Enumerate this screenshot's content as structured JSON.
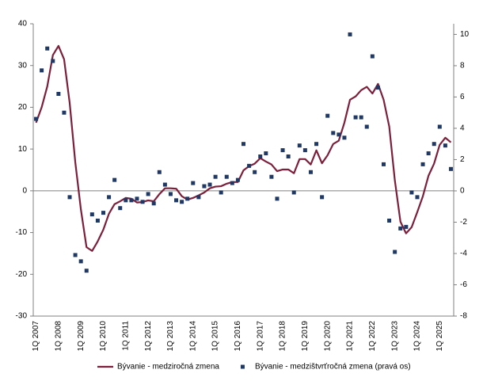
{
  "chart_data": {
    "type": "line",
    "categories": [
      "1Q 2007",
      null,
      null,
      null,
      "1Q 2008",
      null,
      null,
      null,
      "1Q 2009",
      null,
      null,
      null,
      "1Q 2010",
      null,
      null,
      null,
      "1Q 2011",
      null,
      null,
      null,
      "1Q 2012",
      null,
      null,
      null,
      "1Q 2013",
      null,
      null,
      null,
      "1Q 2014",
      null,
      null,
      null,
      "1Q 2015",
      null,
      null,
      null,
      "1Q 2016",
      null,
      null,
      null,
      "1Q 2017",
      null,
      null,
      null,
      "1Q 2018",
      null,
      null,
      null,
      "1Q 2019",
      null,
      null,
      null,
      "1Q 2020",
      null,
      null,
      null,
      "1Q 2021",
      null,
      null,
      null,
      "1Q 2022",
      null,
      null,
      null,
      "1Q 2023",
      null,
      null,
      null,
      "1Q 2024",
      null,
      null,
      null,
      "1Q 2025",
      null,
      null
    ],
    "series": [
      {
        "name": "Bývanie - medziročná zmena",
        "color": "#7b1f3a",
        "type": "line",
        "values": [
          16.3,
          20,
          25,
          32.5,
          34.7,
          31.5,
          21,
          6.8,
          -4.5,
          -13.5,
          -14.4,
          -12.1,
          -9.3,
          -5.5,
          -3.2,
          -2.5,
          -1.7,
          -1.9,
          -2.8,
          -2.7,
          -2.3,
          -2.5,
          -0.8,
          0.6,
          0.6,
          0.5,
          -1.3,
          -2.1,
          -1.7,
          -1.1,
          -0.4,
          0.6,
          1,
          1.1,
          1.7,
          2.1,
          2.1,
          4.9,
          5.9,
          6.5,
          7.8,
          7,
          6.3,
          4.7,
          5.1,
          5.1,
          4.2,
          7.6,
          7.6,
          6.3,
          9.7,
          6.6,
          8.5,
          11.2,
          12,
          16.3,
          21.8,
          22.6,
          24.1,
          24.9,
          23.3,
          25.6,
          21.8,
          15.4,
          2.5,
          -7.4,
          -10.2,
          -8.7,
          -5.1,
          -1.3,
          3.6,
          6.5,
          11,
          12.7,
          11.6
        ]
      },
      {
        "name": "Bývanie - medzištvrťročná zmena (pravá os)",
        "color": "#1f3864",
        "type": "scatter",
        "axis": "y2",
        "values": [
          4.6,
          7.7,
          9.1,
          8.3,
          6.2,
          5.0,
          -0.4,
          -4.1,
          -4.5,
          -5.1,
          -1.5,
          -1.9,
          -1.4,
          -0.4,
          0.7,
          -1.1,
          -0.6,
          -0.6,
          -0.5,
          -0.7,
          -0.2,
          -0.8,
          1.2,
          0.4,
          -0.2,
          -0.6,
          -0.7,
          -0.5,
          0.5,
          -0.4,
          0.3,
          0.4,
          0.9,
          -0.1,
          0.9,
          0.5,
          0.7,
          3.0,
          1.6,
          1.2,
          2.2,
          2.4,
          0.9,
          -0.5,
          2.6,
          2.2,
          -0.1,
          2.9,
          2.6,
          1.2,
          3.0,
          -0.4,
          4.8,
          3.7,
          3.6,
          3.4,
          10.0,
          4.7,
          4.7,
          4.1,
          8.6,
          6.6,
          1.7,
          -1.9,
          -3.9,
          -2.4,
          -2.3,
          -0.1,
          -0.4,
          1.7,
          2.4,
          3.0,
          4.1,
          2.9,
          1.4
        ]
      }
    ],
    "ylim": [
      -30,
      40
    ],
    "yticks": [
      -30,
      -20,
      -10,
      0,
      10,
      20,
      30,
      40
    ],
    "y2lim": [
      -8,
      10.68
    ],
    "y2ticks": [
      -8,
      -6,
      -4,
      -2,
      0,
      2,
      4,
      6,
      8,
      10
    ],
    "grid": false,
    "legend": "bottom"
  }
}
